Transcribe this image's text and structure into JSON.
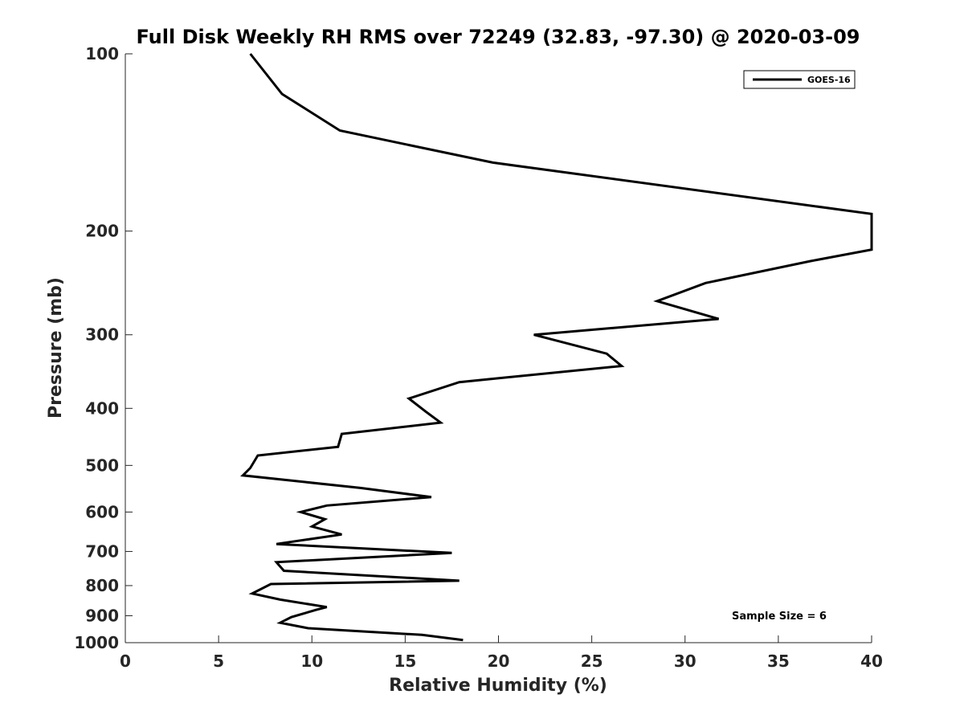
{
  "chart_data": {
    "type": "line",
    "title": "Full Disk Weekly RH RMS over 72249 (32.83, -97.30) @ 2020-03-09",
    "xlabel": "Relative Humidity (%)",
    "ylabel": "Pressure (mb)",
    "xlim": [
      0,
      40
    ],
    "ylim": [
      1000,
      100
    ],
    "yscale": "log",
    "x_ticks": [
      0,
      5,
      10,
      15,
      20,
      25,
      30,
      35,
      40
    ],
    "y_ticks": [
      100,
      200,
      300,
      400,
      500,
      600,
      700,
      800,
      900,
      1000
    ],
    "grid": false,
    "legend_position": "top-right",
    "annotation": "Sample Size = 6",
    "series": [
      {
        "name": "GOES-16",
        "color": "#000000",
        "x": [
          6.7,
          8.4,
          11.5,
          19.7,
          40.0,
          40.0,
          36.7,
          31.1,
          28.5,
          31.8,
          21.9,
          25.8,
          26.6,
          17.9,
          15.2,
          16.1,
          16.9,
          11.6,
          11.4,
          7.1,
          6.7,
          6.3,
          12.6,
          16.4,
          10.8,
          9.4,
          10.7,
          10.0,
          11.6,
          8.1,
          17.5,
          8.1,
          8.5,
          17.9,
          7.8,
          6.8,
          8.3,
          10.8,
          10.2,
          8.9,
          8.3,
          9.8,
          15.9,
          18.1
        ],
        "y": [
          100,
          117,
          135,
          153,
          187,
          215,
          225,
          245,
          263,
          282,
          300,
          323,
          339,
          361,
          385,
          405,
          423,
          442,
          465,
          481,
          505,
          520,
          546,
          566,
          585,
          600,
          617,
          635,
          655,
          680,
          704,
          730,
          755,
          785,
          795,
          825,
          845,
          870,
          880,
          905,
          925,
          945,
          970,
          990
        ]
      }
    ]
  }
}
